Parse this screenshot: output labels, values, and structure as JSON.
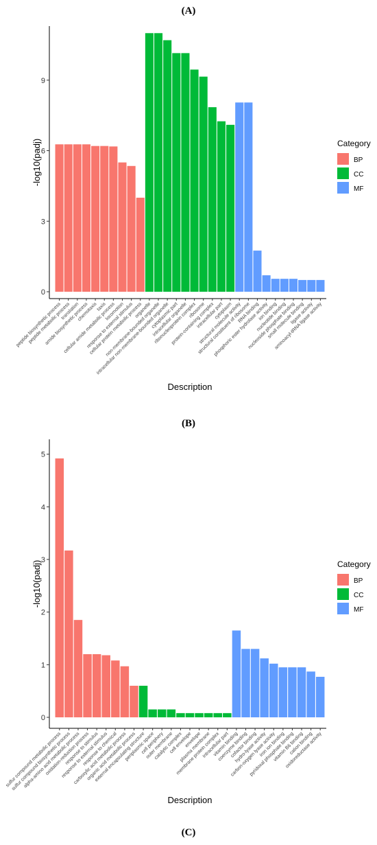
{
  "panel_labels": {
    "a": "(A)",
    "b": "(B)",
    "c": "(C)"
  },
  "colors": {
    "BP": "#F8766D",
    "CC": "#00BA38",
    "MF": "#619CFF"
  },
  "chart_data": [
    {
      "type": "bar",
      "xlabel": "Description",
      "ylabel": "-log10(padj)",
      "ylim": [
        0,
        11.3
      ],
      "yticks": [
        0,
        3,
        6,
        9
      ],
      "legend": {
        "title": "Category",
        "entries": [
          "BP",
          "CC",
          "MF"
        ],
        "placement": "right"
      },
      "categories": [
        "peptide biosynthetic process",
        "peptide metabolic process",
        "translation",
        "amide biosynthetic process",
        "chemotaxis",
        "taxis",
        "cellular amide metabolic process",
        "locomotion",
        "response to external stimulus",
        "cellular protein metabolic process",
        "organelle",
        "non-membrane-bounded organelle",
        "intracellular non-membrane-bounded organelle",
        "cytoplasmic part",
        "intracellular organelle",
        "ribonucleoprotein complex",
        "ribosome",
        "protein-containing complex",
        "intracellular part",
        "cytoplasm",
        "structural molecule activity",
        "structural constituent of ribosome",
        "RNA binding",
        "phosphoric ester hydrolase activity",
        "ion binding",
        "nucleotide binding",
        "nucleoside phosphate binding",
        "small molecule binding",
        "ligase activity",
        "aminoacyl-tRNA ligase activity"
      ],
      "groups": [
        "BP",
        "BP",
        "BP",
        "BP",
        "BP",
        "BP",
        "BP",
        "BP",
        "BP",
        "BP",
        "CC",
        "CC",
        "CC",
        "CC",
        "CC",
        "CC",
        "CC",
        "CC",
        "CC",
        "CC",
        "MF",
        "MF",
        "MF",
        "MF",
        "MF",
        "MF",
        "MF",
        "MF",
        "MF",
        "MF"
      ],
      "values": [
        6.27,
        6.27,
        6.27,
        6.27,
        6.2,
        6.2,
        6.18,
        5.5,
        5.35,
        4.0,
        11.0,
        11.0,
        10.7,
        10.15,
        10.15,
        9.45,
        9.15,
        7.85,
        7.25,
        7.1,
        8.05,
        8.05,
        1.75,
        0.7,
        0.55,
        0.55,
        0.55,
        0.5,
        0.5,
        0.5
      ]
    },
    {
      "type": "bar",
      "xlabel": "Description",
      "ylabel": "-log10(padj)",
      "ylim": [
        0,
        5.1
      ],
      "yticks": [
        0,
        1,
        2,
        3,
        4,
        5
      ],
      "legend": {
        "title": "Category",
        "entries": [
          "BP",
          "CC",
          "MF"
        ],
        "placement": "right"
      },
      "categories": [
        "sulfur compound metabolic process",
        "sulfur compound biosynthetic process",
        "alpha-amino acid metabolic process",
        "oxidation-reduction process",
        "response to stimulus",
        "response to external stimulus",
        "response to chemical",
        "carboxylic acid metabolic process",
        "organic acid metabolic process",
        "external encapsulating structure",
        "periplasmic space",
        "cell periphery",
        "outer membrane",
        "catalytic complex",
        "cell envelope",
        "envelope",
        "plasma membrane",
        "membrane protein complex",
        "intracellular part",
        "vitamin binding",
        "coenzyme binding",
        "cofactor binding",
        "hydro-lyase activity",
        "carbon-oxygen lyase activity",
        "iron ion binding",
        "pyridoxal phosphate binding",
        "vitamin B6 binding",
        "cation binding",
        "oxidoreductase activity"
      ],
      "groups": [
        "BP",
        "BP",
        "BP",
        "BP",
        "BP",
        "BP",
        "BP",
        "BP",
        "BP",
        "CC",
        "CC",
        "CC",
        "CC",
        "CC",
        "CC",
        "CC",
        "CC",
        "CC",
        "CC",
        "MF",
        "MF",
        "MF",
        "MF",
        "MF",
        "MF",
        "MF",
        "MF",
        "MF",
        "MF"
      ],
      "values": [
        4.92,
        3.17,
        1.85,
        1.2,
        1.2,
        1.18,
        1.08,
        0.97,
        0.6,
        0.6,
        0.15,
        0.15,
        0.15,
        0.08,
        0.08,
        0.08,
        0.08,
        0.08,
        0.08,
        1.65,
        1.3,
        1.3,
        1.12,
        1.02,
        0.95,
        0.95,
        0.95,
        0.87,
        0.77
      ]
    }
  ]
}
